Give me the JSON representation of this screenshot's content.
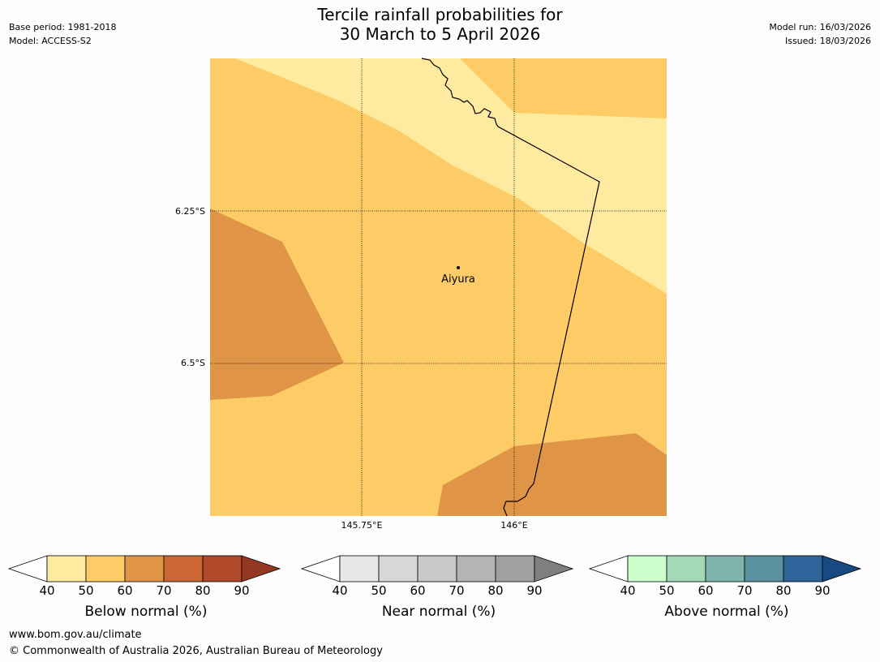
{
  "title": {
    "line1": "Tercile rainfall probabilities for",
    "line2": "30 March to 5 April 2026"
  },
  "meta_left": {
    "base_period": "Base period: 1981-2018",
    "model": "Model: ACCESS-S2"
  },
  "meta_right": {
    "model_run": "Model run: 16/03/2026",
    "issued": "Issued: 18/03/2026"
  },
  "map": {
    "lat_labels": [
      "6.25°S",
      "6.5°S"
    ],
    "lon_labels": [
      "145.75°E",
      "146°E"
    ],
    "town": "Aiyura",
    "colors": {
      "below_40_50": "#ffeb9f",
      "below_50_60": "#fdcc66",
      "below_60_70": "#e09446",
      "border": "#000000",
      "grid": "#000000"
    }
  },
  "colorbars": [
    {
      "label": "Below normal (%)",
      "ticks": [
        "40",
        "50",
        "60",
        "70",
        "80",
        "90"
      ],
      "colors": [
        "#ffeb9f",
        "#fdcc66",
        "#e09446",
        "#cc6633",
        "#b0492a"
      ],
      "extend_color": "#943823"
    },
    {
      "label": "Near normal (%)",
      "ticks": [
        "40",
        "50",
        "60",
        "70",
        "80",
        "90"
      ],
      "colors": [
        "#e6e6e6",
        "#d7d7d7",
        "#c8c8c8",
        "#b4b4b4",
        "#a0a0a0"
      ],
      "extend_color": "#808080"
    },
    {
      "label": "Above normal (%)",
      "ticks": [
        "40",
        "50",
        "60",
        "70",
        "80",
        "90"
      ],
      "colors": [
        "#ccffcc",
        "#a3d9b8",
        "#80b4ae",
        "#5a919f",
        "#2e6499"
      ],
      "extend_color": "#174a82"
    }
  ],
  "footer": {
    "url": "www.bom.gov.au/climate",
    "copyright": "© Commonwealth of Australia 2026, Australian Bureau of Meteorology"
  }
}
